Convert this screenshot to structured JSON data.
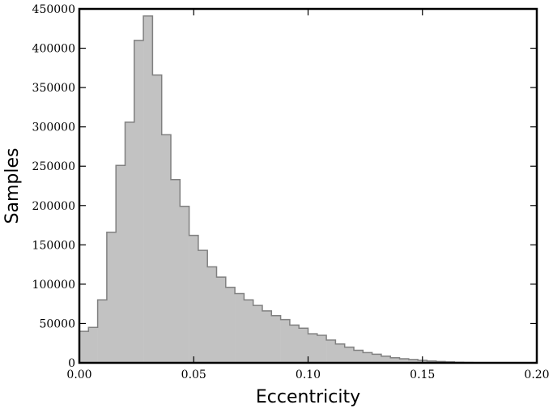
{
  "chart_data": {
    "type": "bar",
    "title": "",
    "xlabel": "Eccentricity",
    "ylabel": "Samples",
    "xlim": [
      0.0,
      0.2
    ],
    "ylim": [
      0,
      450000
    ],
    "xticks": [
      0.0,
      0.05,
      0.1,
      0.15,
      0.2
    ],
    "xtick_labels": [
      "0.00",
      "0.05",
      "0.10",
      "0.15",
      "0.20"
    ],
    "yticks": [
      0,
      50000,
      100000,
      150000,
      200000,
      250000,
      300000,
      350000,
      400000,
      450000
    ],
    "ytick_labels": [
      "0",
      "50000",
      "100000",
      "150000",
      "200000",
      "250000",
      "300000",
      "350000",
      "400000",
      "450000"
    ],
    "grid": false,
    "histogram": true,
    "bin_width": 0.004,
    "bin_edges_start": 0.0,
    "values": [
      40000,
      45000,
      80000,
      166000,
      251000,
      306000,
      410000,
      441000,
      366000,
      290000,
      233000,
      199000,
      162000,
      143000,
      122000,
      109000,
      96000,
      88000,
      80000,
      73000,
      66000,
      60000,
      55000,
      48000,
      44000,
      37000,
      35000,
      29000,
      24000,
      20000,
      16000,
      13000,
      11000,
      8500,
      6500,
      5200,
      4200,
      3200,
      2300,
      1700,
      1100,
      700,
      400,
      200,
      100,
      50,
      20,
      10,
      5,
      2
    ],
    "bar_color": "#c2c2c2",
    "edge_color": "#808080"
  }
}
